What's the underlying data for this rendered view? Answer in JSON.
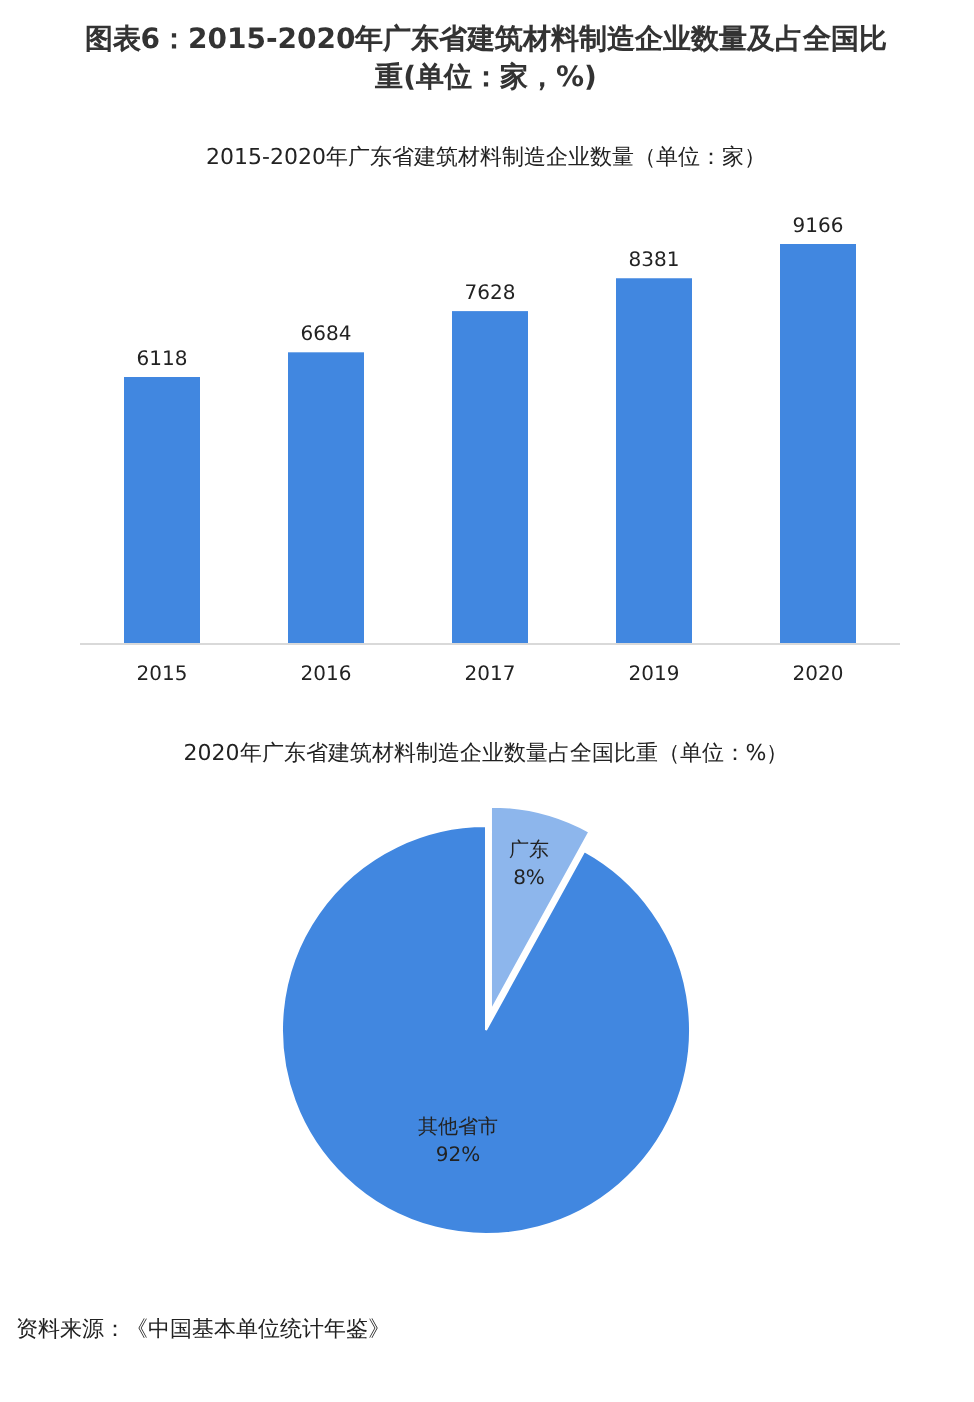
{
  "chart_data": [
    {
      "type": "bar",
      "title": "图表6：2015-2020年广东省建筑材料制造企业数量及占全国比重(单位：家，%)",
      "subtitle": "2015-2020年广东省建筑材料制造企业数量（单位：家）",
      "categories": [
        "2015",
        "2016",
        "2017",
        "2019",
        "2020"
      ],
      "values": [
        6118,
        6684,
        7628,
        8381,
        9166
      ],
      "color": "#4187e0",
      "data_labels": true
    },
    {
      "type": "pie",
      "title": "2020年广东省建筑材料制造企业数量占全国比重（单位：%）",
      "categories": [
        "广东",
        "其他省市"
      ],
      "values": [
        8,
        92
      ],
      "colors": [
        "#8db6ec",
        "#4187e0"
      ],
      "value_labels": [
        "8%",
        "92%"
      ],
      "annotations": [
        "资料来源：《中国基本单位统计年鉴》"
      ]
    }
  ]
}
